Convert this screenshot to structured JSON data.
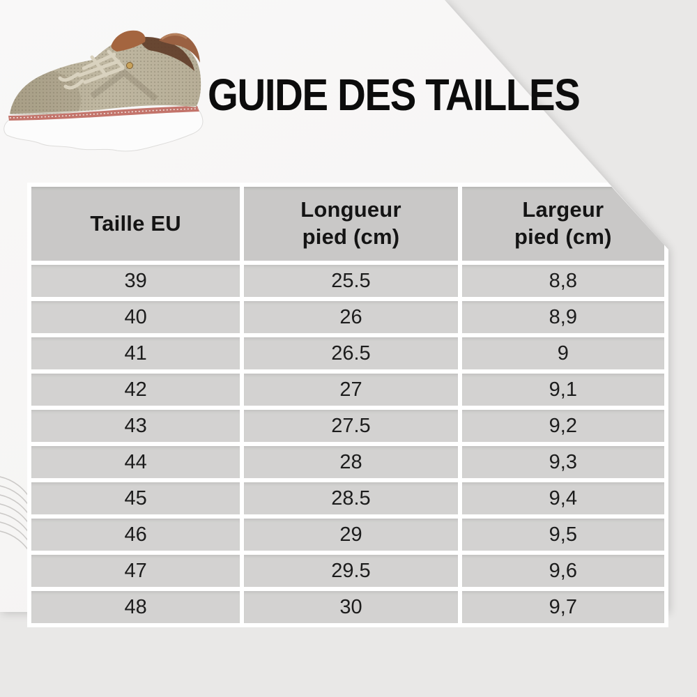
{
  "title": "GUIDE DES TAILLES",
  "table": {
    "headers": [
      "Taille EU",
      "Longueur\npied (cm)",
      "Largeur\npied (cm)"
    ],
    "rows": [
      [
        "39",
        "25.5",
        "8,8"
      ],
      [
        "40",
        "26",
        "8,9"
      ],
      [
        "41",
        "26.5",
        "9"
      ],
      [
        "42",
        "27",
        "9,1"
      ],
      [
        "43",
        "27.5",
        "9,2"
      ],
      [
        "44",
        "28",
        "9,3"
      ],
      [
        "45",
        "28.5",
        "9,4"
      ],
      [
        "46",
        "29",
        "9,5"
      ],
      [
        "47",
        "29.5",
        "9,6"
      ],
      [
        "48",
        "30",
        "9,7"
      ]
    ]
  },
  "images": {
    "shoe_alt": "beige knit sneaker with brown heel tab, pink welt and white sole"
  },
  "colors": {
    "base_background": "#e9e8e7",
    "sheet_background": "#f7f6f5",
    "header_cell": "#c9c8c7",
    "body_cell": "#d3d2d1",
    "text": "#141414",
    "shoe_upper": "#bab19a",
    "shoe_leather": "#9a6142",
    "shoe_welt": "#c3746b",
    "shoe_sole": "#fcfcfc"
  }
}
